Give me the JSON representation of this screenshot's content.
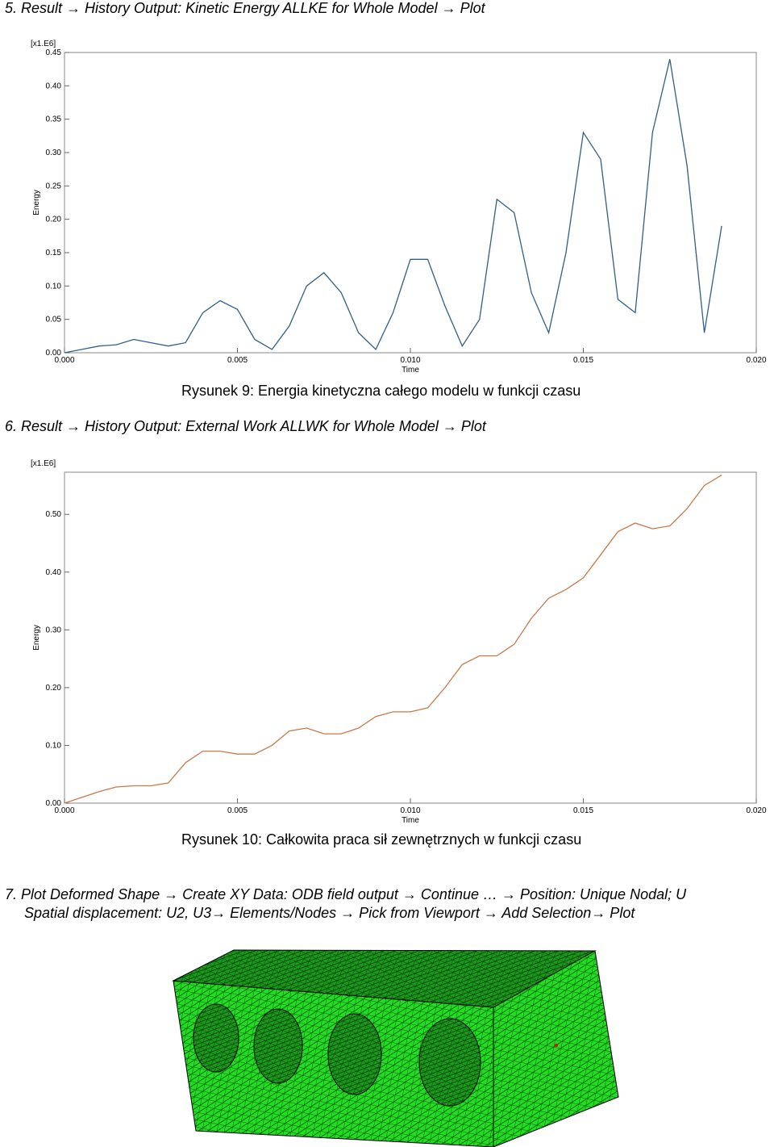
{
  "document": {
    "step5": "5.  Result → History Output: Kinetic Energy ALLKE for Whole Model → Plot",
    "caption9": "Rysunek 9: Energia kinetyczna całego modelu w funkcji czasu",
    "step6": "6.  Result → History Output: External Work ALLWK for Whole Model → Plot",
    "caption10": "Rysunek 10: Całkowita praca sił zewnętrznych w funkcji czasu",
    "step7_line1": "7.  Plot Deformed Shape → Create XY Data: ODB field output → Continue …  → Position: Unique Nodal; U",
    "step7_line2": "Spatial displacement: U2, U3→ Elements/Nodes → Pick from Viewport → Add Selection→ Plot"
  },
  "chart_data": [
    {
      "type": "line",
      "scale_label": "[x1.E6]",
      "y_label": "Energy",
      "x_label": "Time",
      "color": "#2f5f8a",
      "x": [
        0,
        0.0005,
        0.001,
        0.0015,
        0.002,
        0.0025,
        0.003,
        0.0035,
        0.004,
        0.0045,
        0.005,
        0.0055,
        0.006,
        0.0065,
        0.007,
        0.0075,
        0.008,
        0.0085,
        0.009,
        0.0095,
        0.01,
        0.0105,
        0.011,
        0.0115,
        0.012,
        0.0125,
        0.013,
        0.0135,
        0.014,
        0.0145,
        0.015,
        0.0155,
        0.016,
        0.0165,
        0.017,
        0.0175,
        0.018,
        0.0185,
        0.019
      ],
      "values": [
        0,
        0.005,
        0.01,
        0.012,
        0.02,
        0.015,
        0.01,
        0.015,
        0.06,
        0.078,
        0.065,
        0.02,
        0.005,
        0.04,
        0.1,
        0.12,
        0.09,
        0.03,
        0.005,
        0.06,
        0.14,
        0.14,
        0.07,
        0.01,
        0.05,
        0.23,
        0.21,
        0.09,
        0.03,
        0.15,
        0.33,
        0.29,
        0.08,
        0.06,
        0.33,
        0.44,
        0.28,
        0.03,
        0.19
      ],
      "xlim": [
        0,
        0.02
      ],
      "ylim": [
        0,
        0.45
      ],
      "xticks": [
        {
          "value": 0,
          "label": "0.000"
        },
        {
          "value": 0.005,
          "label": "0.005"
        },
        {
          "value": 0.01,
          "label": "0.010"
        },
        {
          "value": 0.015,
          "label": "0.015"
        },
        {
          "value": 0.02,
          "label": "0.020"
        }
      ],
      "yticks": [
        {
          "value": 0,
          "label": "0.00"
        },
        {
          "value": 0.05,
          "label": "0.05"
        },
        {
          "value": 0.1,
          "label": "0.10"
        },
        {
          "value": 0.15,
          "label": "0.15"
        },
        {
          "value": 0.2,
          "label": "0.20"
        },
        {
          "value": 0.25,
          "label": "0.25"
        },
        {
          "value": 0.3,
          "label": "0.30"
        },
        {
          "value": 0.35,
          "label": "0.35"
        },
        {
          "value": 0.4,
          "label": "0.40"
        },
        {
          "value": 0.45,
          "label": "0.45"
        }
      ]
    },
    {
      "type": "line",
      "scale_label": "[x1.E6]",
      "y_label": "Energy",
      "x_label": "Time",
      "color": "#c87a4a",
      "x": [
        0,
        0.001,
        0.0015,
        0.002,
        0.0025,
        0.003,
        0.0035,
        0.004,
        0.0045,
        0.005,
        0.0055,
        0.006,
        0.0065,
        0.007,
        0.0075,
        0.008,
        0.0085,
        0.009,
        0.0095,
        0.01,
        0.0105,
        0.011,
        0.0115,
        0.012,
        0.0125,
        0.013,
        0.0135,
        0.014,
        0.0145,
        0.015,
        0.0155,
        0.016,
        0.0165,
        0.017,
        0.0175,
        0.018,
        0.0185,
        0.019
      ],
      "values": [
        0,
        0.02,
        0.028,
        0.03,
        0.03,
        0.035,
        0.07,
        0.09,
        0.09,
        0.085,
        0.085,
        0.1,
        0.125,
        0.13,
        0.12,
        0.12,
        0.13,
        0.15,
        0.158,
        0.158,
        0.165,
        0.2,
        0.24,
        0.255,
        0.255,
        0.275,
        0.32,
        0.355,
        0.37,
        0.39,
        0.43,
        0.47,
        0.485,
        0.475,
        0.48,
        0.51,
        0.55,
        0.568
      ],
      "xlim": [
        0,
        0.02
      ],
      "ylim": [
        0,
        0.573
      ],
      "xticks": [
        {
          "value": 0,
          "label": "0.000"
        },
        {
          "value": 0.005,
          "label": "0.005"
        },
        {
          "value": 0.01,
          "label": "0.010"
        },
        {
          "value": 0.015,
          "label": "0.015"
        },
        {
          "value": 0.02,
          "label": "0.020"
        }
      ],
      "yticks": [
        {
          "value": 0,
          "label": "0.00"
        },
        {
          "value": 0.1,
          "label": "0.10"
        },
        {
          "value": 0.2,
          "label": "0.20"
        },
        {
          "value": 0.3,
          "label": "0.30"
        },
        {
          "value": 0.4,
          "label": "0.40"
        },
        {
          "value": 0.5,
          "label": "0.50"
        }
      ]
    }
  ]
}
